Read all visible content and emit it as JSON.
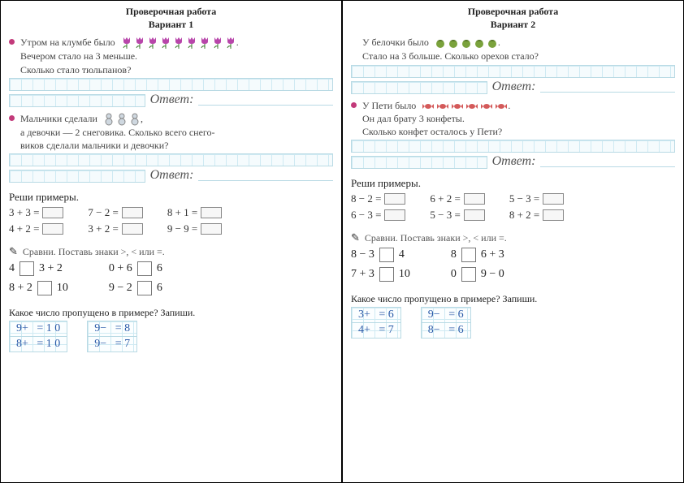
{
  "variant1": {
    "header_line1": "Проверочная работа",
    "header_line2": "Вариант 1",
    "task1_line1": "Утром на клумбе было",
    "task1_line2": "Вечером стало на 3 меньше.",
    "task1_line3": "Сколько стало тюльпанов?",
    "task1_icon_count": 9,
    "task2_line1": "Мальчики сделали",
    "task2_line2": "а девочки — 2 снеговика. Сколько всего снего-",
    "task2_line3": "виков сделали мальчики и девочки?",
    "task2_icon_count": 3,
    "answer_label": "Ответ:",
    "examples_title": "Реши примеры.",
    "examples": [
      [
        "3 + 3 =",
        "4 + 2 ="
      ],
      [
        "7 − 2 =",
        "3 + 2 ="
      ],
      [
        "8 + 1 =",
        "9 − 9 ="
      ]
    ],
    "compare_title": "Сравни. Поставь знаки >, < или =.",
    "compare": [
      [
        {
          "l": "4",
          "r": "3 + 2"
        },
        {
          "l": "8 + 2",
          "r": "10"
        }
      ],
      [
        {
          "l": "0 + 6",
          "r": "6"
        },
        {
          "l": "9 − 2",
          "r": "6"
        }
      ]
    ],
    "missing_title": "Какое число пропущено в примере? Запиши.",
    "missing": [
      [
        "9+   = 1 0",
        "8+   = 1 0"
      ],
      [
        "9−   = 8",
        "9−   = 7"
      ]
    ]
  },
  "variant2": {
    "header_line1": "Проверочная работа",
    "header_line2": "Вариант 2",
    "task1_line1": "У белочки было",
    "task1_line2": "Стало на 3 больше. Сколько орехов стало?",
    "task1_icon_count": 5,
    "task2_line1": "У Пети было",
    "task2_line2": "Он дал брату 3 конфеты.",
    "task2_line3": "Сколько конфет осталось у Пети?",
    "task2_icon_count": 6,
    "answer_label": "Ответ:",
    "examples_title": "Реши примеры.",
    "examples": [
      [
        "8 − 2 =",
        "6 − 3 ="
      ],
      [
        "6 + 2 =",
        "5 − 3 ="
      ],
      [
        "5 − 3 =",
        "8 + 2 ="
      ]
    ],
    "compare_title": "Сравни. Поставь знаки >, < или =.",
    "compare": [
      [
        {
          "l": "8 − 3",
          "r": "4"
        },
        {
          "l": "7 + 3",
          "r": "10"
        }
      ],
      [
        {
          "l": "8",
          "r": "6 + 3"
        },
        {
          "l": "0",
          "r": "9 − 0"
        }
      ]
    ],
    "missing_title": "Какое число пропущено в примере? Запиши.",
    "missing": [
      [
        "3+   = 6",
        "4+   = 7"
      ],
      [
        "9−   = 6",
        "8−   = 6"
      ]
    ]
  },
  "colors": {
    "tulip": "#b846aa",
    "nut": "#7aa23c",
    "candy": "#d45a5a",
    "snowman": "#cfd8e0"
  }
}
